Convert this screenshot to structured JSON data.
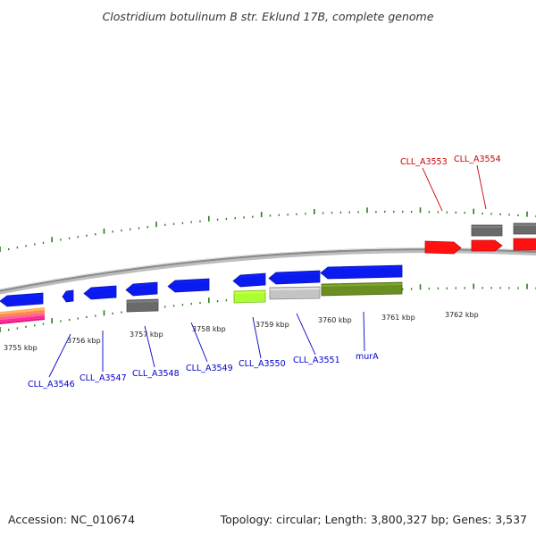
{
  "title": "Clostridium botulinum B str. Eklund 17B, complete genome",
  "footer": {
    "accession": "Accession: NC_010674",
    "summary": "Topology: circular; Length: 3,800,327 bp; Genes: 3,537"
  },
  "colors": {
    "backbone": "#888888",
    "tick": "#2d7a1f",
    "plus_strand_label": "#cc0000",
    "minus_strand_label": "#0000cc",
    "blue_gene": "#0b1bf0",
    "red_gene": "#ff1111",
    "gray_gene": "#6a6a6a",
    "light_gray_gene": "#c4c4c4",
    "lime_gene": "#aaff33",
    "olive_gene": "#6b8e23"
  },
  "scale_labels": [
    "3755 kbp",
    "3756 kbp",
    "3757 kbp",
    "3758 kbp",
    "3759 kbp",
    "3760 kbp",
    "3761 kbp",
    "3762 kbp"
  ],
  "gene_labels": [
    {
      "text": "CLL_A3553",
      "color": "plus_strand_label"
    },
    {
      "text": "CLL_A3554",
      "color": "plus_strand_label"
    },
    {
      "text": "CLL_A3546",
      "color": "minus_strand_label"
    },
    {
      "text": "CLL_A3547",
      "color": "minus_strand_label"
    },
    {
      "text": "CLL_A3548",
      "color": "minus_strand_label"
    },
    {
      "text": "CLL_A3549",
      "color": "minus_strand_label"
    },
    {
      "text": "CLL_A3550",
      "color": "minus_strand_label"
    },
    {
      "text": "CLL_A3551",
      "color": "minus_strand_label"
    },
    {
      "text": "murA",
      "color": "minus_strand_label"
    }
  ],
  "genes": [
    {
      "strand": "-",
      "color": "blue_gene"
    },
    {
      "strand": "-",
      "color": "blue_gene"
    },
    {
      "strand": "-",
      "color": "blue_gene"
    },
    {
      "strand": "-",
      "color": "blue_gene"
    },
    {
      "strand": "-",
      "color": "blue_gene"
    },
    {
      "strand": "-",
      "color": "blue_gene"
    },
    {
      "strand": "-",
      "color": "blue_gene"
    },
    {
      "strand": "-",
      "color": "blue_gene"
    },
    {
      "strand": "-",
      "color": "gray_gene"
    },
    {
      "strand": "-",
      "color": "lime_gene"
    },
    {
      "strand": "-",
      "color": "light_gray_gene"
    },
    {
      "strand": "-",
      "color": "olive_gene"
    },
    {
      "strand": "+",
      "color": "red_gene"
    },
    {
      "strand": "+",
      "color": "red_gene"
    },
    {
      "strand": "+",
      "color": "red_gene"
    },
    {
      "strand": "+",
      "color": "gray_gene"
    },
    {
      "strand": "+",
      "color": "gray_gene"
    }
  ]
}
